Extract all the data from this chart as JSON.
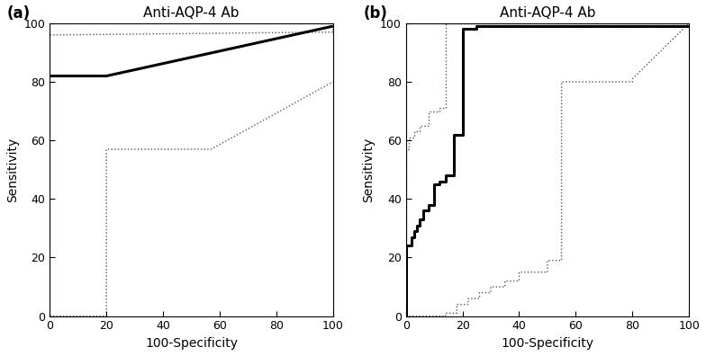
{
  "title": "Anti-AQP-4 Ab",
  "xlabel": "100-Specificity",
  "ylabel": "Sensitivity",
  "panel_a_label": "(a)",
  "panel_b_label": "(b)",
  "a_main": {
    "x": [
      0,
      20,
      100
    ],
    "y": [
      82,
      82,
      99
    ]
  },
  "a_upper_ci": {
    "x": [
      0,
      0,
      100,
      100
    ],
    "y": [
      0,
      96,
      97,
      100
    ]
  },
  "a_lower_ci": {
    "x": [
      0,
      0,
      20,
      20,
      57,
      57,
      100
    ],
    "y": [
      0,
      0,
      0,
      57,
      57,
      57,
      80
    ]
  },
  "b_main": {
    "x": [
      0,
      0,
      2,
      2,
      3,
      3,
      4,
      4,
      5,
      5,
      6,
      6,
      8,
      8,
      10,
      10,
      12,
      12,
      14,
      14,
      17,
      17,
      20,
      20,
      25,
      25,
      100
    ],
    "y": [
      0,
      24,
      24,
      27,
      27,
      29,
      29,
      31,
      31,
      33,
      33,
      36,
      36,
      38,
      38,
      45,
      45,
      46,
      46,
      48,
      48,
      62,
      62,
      98,
      98,
      99,
      99
    ]
  },
  "b_upper_ci": {
    "x": [
      0,
      0,
      1,
      1,
      3,
      3,
      5,
      5,
      8,
      8,
      12,
      12,
      14,
      14,
      100,
      100
    ],
    "y": [
      0,
      57,
      57,
      61,
      61,
      63,
      63,
      65,
      65,
      70,
      70,
      71,
      71,
      100,
      100,
      100
    ]
  },
  "b_lower_ci": {
    "x": [
      0,
      0,
      14,
      14,
      18,
      18,
      22,
      22,
      26,
      26,
      30,
      30,
      35,
      35,
      40,
      40,
      50,
      50,
      55,
      55,
      80,
      80,
      100
    ],
    "y": [
      0,
      0,
      0,
      1,
      1,
      4,
      4,
      6,
      6,
      8,
      8,
      10,
      10,
      12,
      12,
      15,
      15,
      19,
      19,
      80,
      80,
      81,
      100
    ]
  },
  "main_color": "#000000",
  "ci_color": "#555555",
  "main_lw": 2.2,
  "ci_lw": 1.0,
  "ci_ls": "dotted",
  "bg_color": "#ffffff",
  "tick_fontsize": 9,
  "label_fontsize": 10,
  "title_fontsize": 11,
  "panel_label_fontsize": 12,
  "xlim": [
    0,
    100
  ],
  "ylim": [
    0,
    100
  ],
  "xticks": [
    0,
    20,
    40,
    60,
    80,
    100
  ],
  "yticks": [
    0,
    20,
    40,
    60,
    80,
    100
  ]
}
